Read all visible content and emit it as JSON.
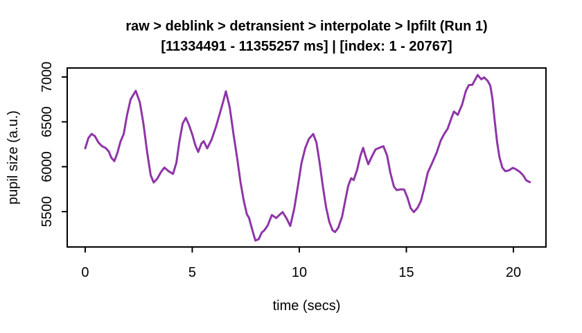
{
  "chart": {
    "title_line1": "raw > deblink > detransient > interpolate > lpfilt (Run 1)",
    "title_line2": "[11334491 - 11355257 ms] | [index: 1 - 20767]",
    "xlabel": "time (secs)",
    "ylabel": "pupil size (a.u.)"
  },
  "chart_data": {
    "type": "line",
    "title": "raw > deblink > detransient > interpolate > lpfilt (Run 1)",
    "subtitle": "[11334491 - 11355257 ms] | [index: 1 - 20767]",
    "xlabel": "time (secs)",
    "ylabel": "pupil size (a.u.)",
    "x_ticks": [
      0,
      5,
      10,
      15,
      20
    ],
    "y_ticks": [
      5500,
      6000,
      6500,
      7000
    ],
    "xlim": [
      -0.84,
      21.52
    ],
    "ylim": [
      5106,
      7100
    ],
    "grid": false,
    "legend": "none",
    "line_color": "#8E35A8",
    "axis_color": "#000000",
    "series": [
      {
        "name": "pupil_size",
        "points": [
          [
            0.0,
            6205
          ],
          [
            0.15,
            6320
          ],
          [
            0.3,
            6365
          ],
          [
            0.45,
            6342
          ],
          [
            0.62,
            6270
          ],
          [
            0.78,
            6230
          ],
          [
            0.95,
            6210
          ],
          [
            1.1,
            6170
          ],
          [
            1.22,
            6100
          ],
          [
            1.36,
            6063
          ],
          [
            1.5,
            6150
          ],
          [
            1.65,
            6280
          ],
          [
            1.8,
            6365
          ],
          [
            1.95,
            6570
          ],
          [
            2.12,
            6750
          ],
          [
            2.36,
            6846
          ],
          [
            2.55,
            6720
          ],
          [
            2.72,
            6480
          ],
          [
            2.9,
            6150
          ],
          [
            3.06,
            5905
          ],
          [
            3.2,
            5825
          ],
          [
            3.36,
            5865
          ],
          [
            3.55,
            5945
          ],
          [
            3.7,
            5990
          ],
          [
            3.9,
            5950
          ],
          [
            4.1,
            5920
          ],
          [
            4.26,
            6045
          ],
          [
            4.4,
            6280
          ],
          [
            4.55,
            6480
          ],
          [
            4.7,
            6545
          ],
          [
            4.85,
            6465
          ],
          [
            5.0,
            6360
          ],
          [
            5.15,
            6235
          ],
          [
            5.28,
            6165
          ],
          [
            5.42,
            6255
          ],
          [
            5.53,
            6285
          ],
          [
            5.7,
            6205
          ],
          [
            5.9,
            6300
          ],
          [
            6.1,
            6440
          ],
          [
            6.3,
            6605
          ],
          [
            6.45,
            6730
          ],
          [
            6.57,
            6840
          ],
          [
            6.75,
            6660
          ],
          [
            6.92,
            6375
          ],
          [
            7.1,
            6090
          ],
          [
            7.25,
            5835
          ],
          [
            7.4,
            5630
          ],
          [
            7.55,
            5470
          ],
          [
            7.65,
            5432
          ],
          [
            7.8,
            5300
          ],
          [
            7.95,
            5178
          ],
          [
            8.1,
            5192
          ],
          [
            8.25,
            5268
          ],
          [
            8.36,
            5290
          ],
          [
            8.52,
            5345
          ],
          [
            8.72,
            5462
          ],
          [
            8.92,
            5428
          ],
          [
            9.1,
            5470
          ],
          [
            9.22,
            5495
          ],
          [
            9.4,
            5425
          ],
          [
            9.58,
            5340
          ],
          [
            9.76,
            5530
          ],
          [
            9.94,
            5790
          ],
          [
            10.1,
            6040
          ],
          [
            10.28,
            6210
          ],
          [
            10.45,
            6310
          ],
          [
            10.65,
            6365
          ],
          [
            10.8,
            6270
          ],
          [
            10.95,
            6040
          ],
          [
            11.1,
            5780
          ],
          [
            11.25,
            5550
          ],
          [
            11.4,
            5385
          ],
          [
            11.55,
            5292
          ],
          [
            11.67,
            5272
          ],
          [
            11.82,
            5320
          ],
          [
            12.0,
            5445
          ],
          [
            12.14,
            5615
          ],
          [
            12.28,
            5785
          ],
          [
            12.42,
            5872
          ],
          [
            12.54,
            5852
          ],
          [
            12.7,
            5965
          ],
          [
            12.85,
            6120
          ],
          [
            12.98,
            6210
          ],
          [
            13.1,
            6112
          ],
          [
            13.22,
            6028
          ],
          [
            13.4,
            6120
          ],
          [
            13.56,
            6192
          ],
          [
            13.75,
            6212
          ],
          [
            13.93,
            6228
          ],
          [
            14.1,
            6125
          ],
          [
            14.25,
            5935
          ],
          [
            14.42,
            5778
          ],
          [
            14.55,
            5740
          ],
          [
            14.75,
            5748
          ],
          [
            14.9,
            5745
          ],
          [
            15.05,
            5655
          ],
          [
            15.2,
            5538
          ],
          [
            15.35,
            5495
          ],
          [
            15.52,
            5542
          ],
          [
            15.68,
            5618
          ],
          [
            15.85,
            5778
          ],
          [
            16.0,
            5935
          ],
          [
            16.2,
            6040
          ],
          [
            16.42,
            6160
          ],
          [
            16.6,
            6290
          ],
          [
            16.76,
            6362
          ],
          [
            16.93,
            6425
          ],
          [
            17.1,
            6540
          ],
          [
            17.22,
            6615
          ],
          [
            17.4,
            6578
          ],
          [
            17.6,
            6690
          ],
          [
            17.78,
            6845
          ],
          [
            17.92,
            6910
          ],
          [
            18.08,
            6912
          ],
          [
            18.33,
            7022
          ],
          [
            18.5,
            6974
          ],
          [
            18.63,
            6995
          ],
          [
            18.8,
            6956
          ],
          [
            18.92,
            6902
          ],
          [
            19.02,
            6760
          ],
          [
            19.13,
            6505
          ],
          [
            19.24,
            6272
          ],
          [
            19.35,
            6105
          ],
          [
            19.48,
            5990
          ],
          [
            19.62,
            5950
          ],
          [
            19.8,
            5960
          ],
          [
            19.97,
            5988
          ],
          [
            20.13,
            5970
          ],
          [
            20.29,
            5944
          ],
          [
            20.45,
            5906
          ],
          [
            20.6,
            5848
          ],
          [
            20.77,
            5828
          ]
        ]
      }
    ]
  }
}
